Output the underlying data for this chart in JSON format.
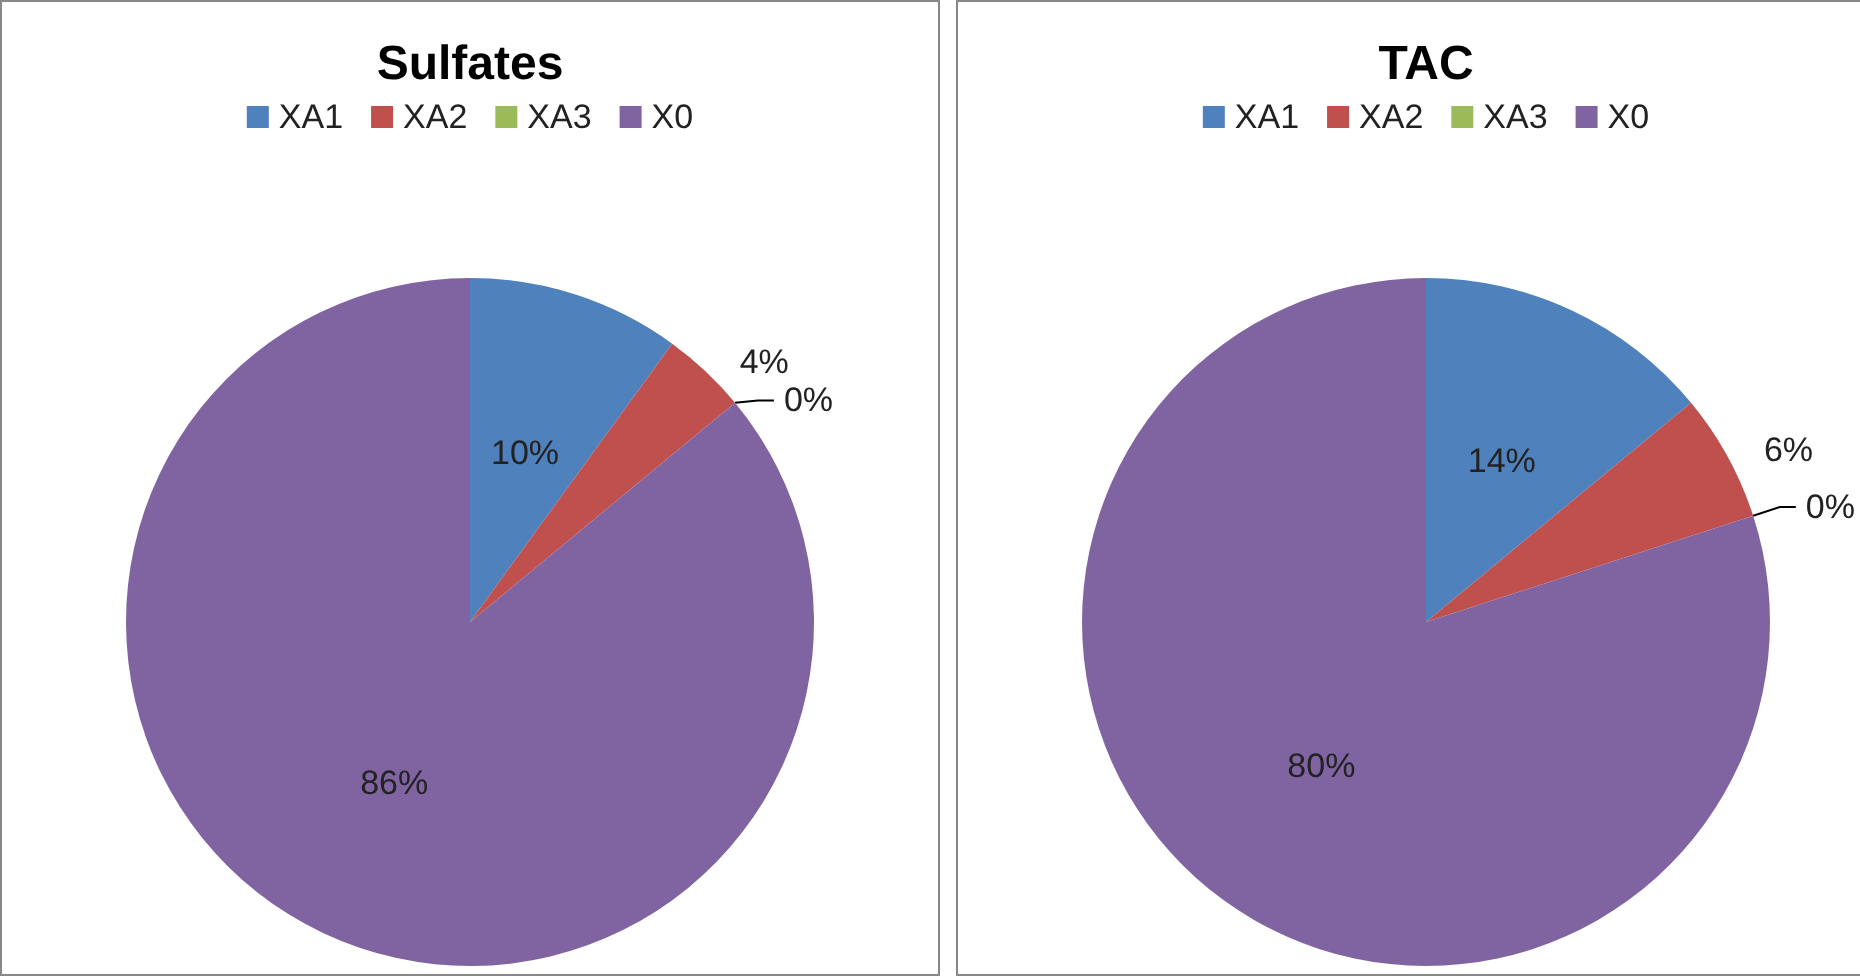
{
  "chart_data": [
    {
      "type": "pie",
      "title": "Sulfates",
      "categories": [
        "XA1",
        "XA2",
        "XA3",
        "X0"
      ],
      "values": [
        10,
        4,
        0,
        86
      ],
      "colors": [
        "#4f81bd",
        "#c0504d",
        "#9bbb59",
        "#8064a2"
      ],
      "value_labels": [
        "10%",
        "4%",
        "0%",
        "86%"
      ],
      "legend": "top"
    },
    {
      "type": "pie",
      "title": "TAC",
      "categories": [
        "XA1",
        "XA2",
        "XA3",
        "X0"
      ],
      "values": [
        14,
        6,
        0,
        80
      ],
      "colors": [
        "#4f81bd",
        "#c0504d",
        "#9bbb59",
        "#8064a2"
      ],
      "value_labels": [
        "14%",
        "6%",
        "0%",
        "80%"
      ],
      "legend": "top"
    }
  ]
}
